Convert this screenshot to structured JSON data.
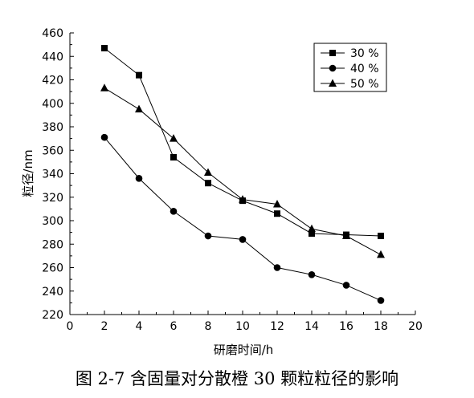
{
  "caption": "图 2-7  含固量对分散橙 30 颗粒粒径的影响",
  "chart_data": {
    "type": "line",
    "xlabel": "研磨时间/h",
    "ylabel": "粒径/nm",
    "xlim": [
      0,
      20
    ],
    "ylim": [
      220,
      460
    ],
    "xticks": [
      0,
      2,
      4,
      6,
      8,
      10,
      12,
      14,
      16,
      18,
      20
    ],
    "yticks": [
      220,
      240,
      260,
      280,
      300,
      320,
      340,
      360,
      380,
      400,
      420,
      440,
      460
    ],
    "grid": false,
    "legend_position": "top-right",
    "x": [
      2,
      4,
      6,
      8,
      10,
      12,
      14,
      16,
      18
    ],
    "series": [
      {
        "name": "30 %",
        "marker": "square",
        "values": [
          447,
          424,
          354,
          332,
          317,
          306,
          289,
          288,
          287
        ]
      },
      {
        "name": "40 %",
        "marker": "circle",
        "values": [
          371,
          336,
          308,
          287,
          284,
          260,
          254,
          245,
          232
        ]
      },
      {
        "name": "50 %",
        "marker": "triangle",
        "values": [
          413,
          395,
          370,
          341,
          318,
          314,
          293,
          287,
          271
        ]
      }
    ]
  }
}
